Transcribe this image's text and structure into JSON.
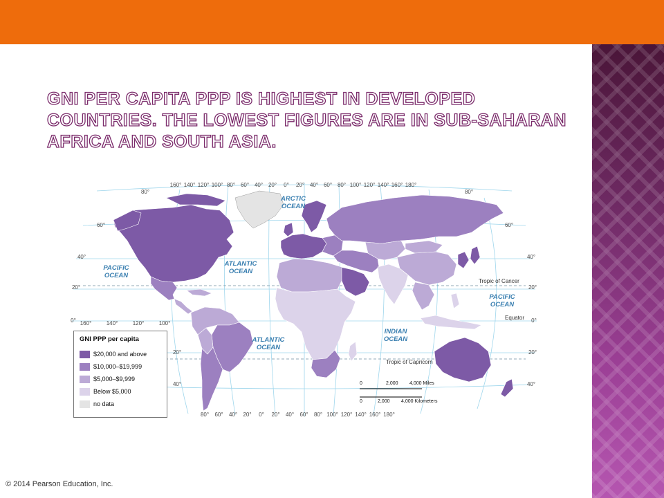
{
  "title": "GNI per capita PPP is highest in developed countries. The lowest figures are in sub-Saharan Africa and South Asia.",
  "colors": {
    "header_bar": "#ee6c0c",
    "side_panel": "#8a3a86",
    "title_outline": "#7a2a6a",
    "ocean": "#ffffff",
    "graticule": "#8fd0ea"
  },
  "map": {
    "legend": {
      "title": "GNI PPP per capita",
      "items": [
        {
          "label": "$20,000 and above",
          "color": "#7d5aa6"
        },
        {
          "label": "$10,000–$19,999",
          "color": "#9c80c0"
        },
        {
          "label": "$5,000–$9,999",
          "color": "#bcaad6"
        },
        {
          "label": "Below $5,000",
          "color": "#dcd3ea"
        },
        {
          "label": "no data",
          "color": "#e4e4e4"
        }
      ]
    },
    "oceans": {
      "arctic": [
        "ARCTIC",
        "OCEAN"
      ],
      "atlantic_north": [
        "ATLANTIC",
        "OCEAN"
      ],
      "atlantic_south": [
        "ATLANTIC",
        "OCEAN"
      ],
      "pacific_west": [
        "PACIFIC",
        "OCEAN"
      ],
      "pacific_east": [
        "PACIFIC",
        "OCEAN"
      ],
      "indian": [
        "INDIAN",
        "OCEAN"
      ]
    },
    "lines": {
      "cancer": "Tropic of Cancer",
      "equator": "Equator",
      "capricorn": "Tropic of Capricorn"
    },
    "top_longitudes": [
      "160°",
      "140°",
      "120°",
      "100°",
      "80°",
      "60°",
      "40°",
      "20°",
      "0°",
      "20°",
      "40°",
      "60°",
      "80°",
      "100°",
      "120°",
      "140°",
      "160°",
      "180°"
    ],
    "bottom_longitudes": [
      "80°",
      "60°",
      "40°",
      "20°",
      "0°",
      "20°",
      "40°",
      "60°",
      "80°",
      "100°",
      "120°",
      "140°",
      "160°",
      "180°"
    ],
    "equator_longitudes": [
      "160°",
      "140°",
      "120°",
      "100°"
    ],
    "latitudes_left": [
      "80°",
      "60°",
      "40°",
      "20°",
      "0°",
      "20°",
      "40°"
    ],
    "latitudes_right": [
      "80°",
      "60°",
      "40°",
      "20°",
      "0°",
      "20°",
      "40°"
    ],
    "scale": {
      "zero": "0",
      "miles_mid": "2,000",
      "miles_end": "4,000 Miles",
      "km_mid": "2,000",
      "km_end": "4,000 Kilometers"
    }
  },
  "copyright": "© 2014 Pearson Education, Inc."
}
